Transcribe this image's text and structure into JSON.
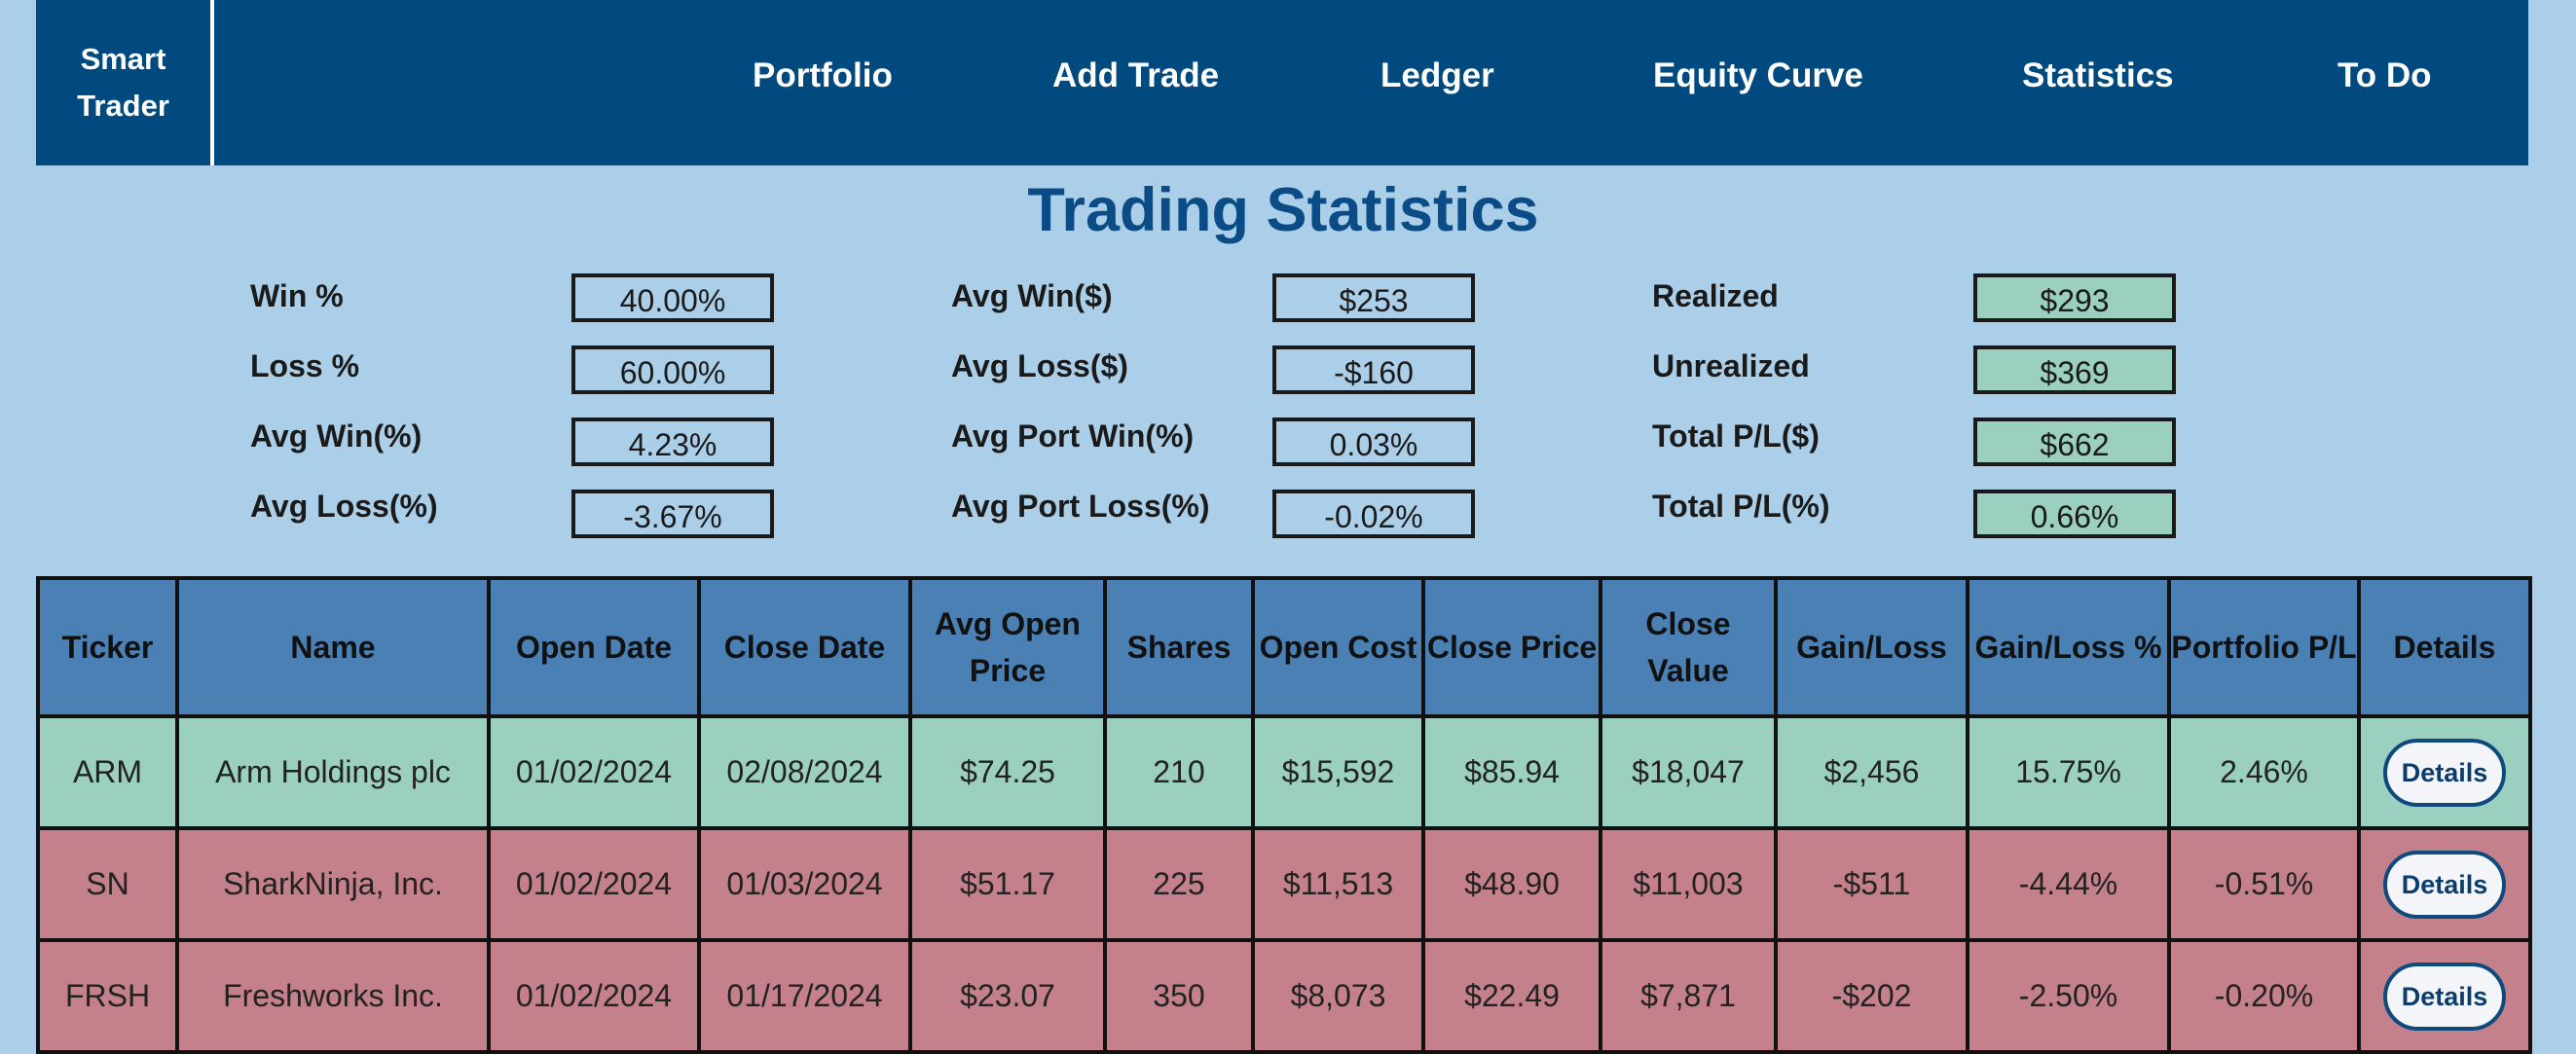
{
  "brand": {
    "line1": "Smart",
    "line2": "Trader"
  },
  "nav": [
    {
      "label": "Portfolio"
    },
    {
      "label": "Add Trade"
    },
    {
      "label": "Ledger"
    },
    {
      "label": "Equity Curve"
    },
    {
      "label": "Statistics"
    },
    {
      "label": "To Do"
    }
  ],
  "page_title": "Trading Statistics",
  "stats": {
    "col1": [
      {
        "label": "Win %",
        "value": "40.00%"
      },
      {
        "label": "Loss %",
        "value": "60.00%"
      },
      {
        "label": "Avg Win(%)",
        "value": "4.23%"
      },
      {
        "label": "Avg Loss(%)",
        "value": "-3.67%"
      }
    ],
    "col2": [
      {
        "label": "Avg Win($)",
        "value": "$253"
      },
      {
        "label": "Avg Loss($)",
        "value": "-$160"
      },
      {
        "label": "Avg Port Win(%)",
        "value": "0.03%"
      },
      {
        "label": "Avg Port Loss(%)",
        "value": "-0.02%"
      }
    ],
    "col3": [
      {
        "label": "Realized",
        "value": "$293"
      },
      {
        "label": "Unrealized",
        "value": "$369"
      },
      {
        "label": "Total P/L($)",
        "value": "$662"
      },
      {
        "label": "Total P/L(%)",
        "value": "0.66%"
      }
    ]
  },
  "table": {
    "headers": [
      "Ticker",
      "Name",
      "Open Date",
      "Close Date",
      "Avg Open Price",
      "Shares",
      "Open Cost",
      "Close Price",
      "Close Value",
      "Gain/Loss",
      "Gain/Loss %",
      "Portfolio P/L",
      "Details"
    ],
    "rows": [
      {
        "ticker": "ARM",
        "name": "Arm Holdings plc",
        "open_date": "01/02/2024",
        "close_date": "02/08/2024",
        "avg_open_price": "$74.25",
        "shares": "210",
        "open_cost": "$15,592",
        "close_price": "$85.94",
        "close_value": "$18,047",
        "gain_loss": "$2,456",
        "gain_loss_pct": "15.75%",
        "portfolio_pl": "2.46%",
        "details_label": "Details"
      },
      {
        "ticker": "SN",
        "name": "SharkNinja, Inc.",
        "open_date": "01/02/2024",
        "close_date": "01/03/2024",
        "avg_open_price": "$51.17",
        "shares": "225",
        "open_cost": "$11,513",
        "close_price": "$48.90",
        "close_value": "$11,003",
        "gain_loss": "-$511",
        "gain_loss_pct": "-4.44%",
        "portfolio_pl": "-0.51%",
        "details_label": "Details"
      },
      {
        "ticker": "FRSH",
        "name": "Freshworks Inc.",
        "open_date": "01/02/2024",
        "close_date": "01/17/2024",
        "avg_open_price": "$23.07",
        "shares": "350",
        "open_cost": "$8,073",
        "close_price": "$22.49",
        "close_value": "$7,871",
        "gain_loss": "-$202",
        "gain_loss_pct": "-2.50%",
        "portfolio_pl": "-0.20%",
        "details_label": "Details"
      }
    ]
  },
  "colors": {
    "background": "#abcfe9",
    "navbar": "#004a80",
    "title": "#0b4c86",
    "header_row": "#4a80b3",
    "win_row": "#9bcfbf",
    "loss_row": "#c4818c",
    "positive_box": "#9bcfbf"
  }
}
